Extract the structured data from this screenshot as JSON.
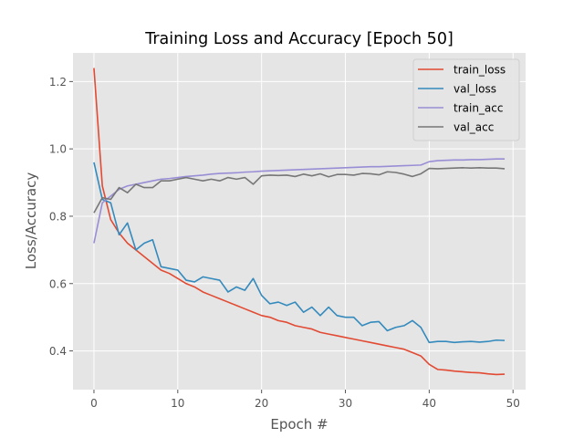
{
  "chart_data": {
    "type": "line",
    "title": "Training Loss and Accuracy [Epoch 50]",
    "xlabel": "Epoch #",
    "ylabel": "Loss/Accuracy",
    "xlim": [
      -2.5,
      51.5
    ],
    "ylim": [
      0.285,
      1.285
    ],
    "xticks": [
      0,
      10,
      20,
      30,
      40,
      50
    ],
    "yticks": [
      0.4,
      0.6,
      0.8,
      1.0,
      1.2
    ],
    "grid": true,
    "legend_position": "top-right",
    "x": [
      0,
      1,
      2,
      3,
      4,
      5,
      6,
      7,
      8,
      9,
      10,
      11,
      12,
      13,
      14,
      15,
      16,
      17,
      18,
      19,
      20,
      21,
      22,
      23,
      24,
      25,
      26,
      27,
      28,
      29,
      30,
      31,
      32,
      33,
      34,
      35,
      36,
      37,
      38,
      39,
      40,
      41,
      42,
      43,
      44,
      45,
      46,
      47,
      48,
      49
    ],
    "series": [
      {
        "name": "train_loss",
        "color": "#e24a33",
        "values": [
          1.24,
          0.89,
          0.79,
          0.75,
          0.72,
          0.7,
          0.68,
          0.66,
          0.64,
          0.63,
          0.615,
          0.6,
          0.59,
          0.575,
          0.565,
          0.555,
          0.545,
          0.535,
          0.525,
          0.515,
          0.505,
          0.5,
          0.49,
          0.485,
          0.475,
          0.47,
          0.465,
          0.455,
          0.45,
          0.445,
          0.44,
          0.435,
          0.43,
          0.425,
          0.42,
          0.415,
          0.41,
          0.405,
          0.395,
          0.385,
          0.36,
          0.345,
          0.343,
          0.34,
          0.338,
          0.336,
          0.335,
          0.332,
          0.33,
          0.331
        ]
      },
      {
        "name": "val_loss",
        "color": "#348abd",
        "values": [
          0.96,
          0.85,
          0.84,
          0.745,
          0.78,
          0.7,
          0.72,
          0.73,
          0.65,
          0.645,
          0.64,
          0.61,
          0.605,
          0.62,
          0.615,
          0.61,
          0.575,
          0.59,
          0.58,
          0.615,
          0.565,
          0.54,
          0.545,
          0.535,
          0.545,
          0.515,
          0.53,
          0.505,
          0.53,
          0.505,
          0.5,
          0.5,
          0.475,
          0.485,
          0.487,
          0.46,
          0.47,
          0.475,
          0.49,
          0.47,
          0.425,
          0.428,
          0.428,
          0.425,
          0.427,
          0.428,
          0.426,
          0.428,
          0.432,
          0.431
        ]
      },
      {
        "name": "train_acc",
        "color": "#988ed5",
        "values": [
          0.72,
          0.84,
          0.86,
          0.88,
          0.89,
          0.895,
          0.9,
          0.905,
          0.91,
          0.912,
          0.915,
          0.918,
          0.92,
          0.922,
          0.925,
          0.927,
          0.928,
          0.929,
          0.931,
          0.932,
          0.934,
          0.935,
          0.936,
          0.937,
          0.938,
          0.939,
          0.94,
          0.941,
          0.942,
          0.943,
          0.944,
          0.945,
          0.946,
          0.947,
          0.947,
          0.948,
          0.949,
          0.95,
          0.951,
          0.952,
          0.962,
          0.965,
          0.966,
          0.967,
          0.967,
          0.968,
          0.968,
          0.969,
          0.97,
          0.97
        ]
      },
      {
        "name": "val_acc",
        "color": "#777777",
        "values": [
          0.81,
          0.855,
          0.85,
          0.885,
          0.87,
          0.895,
          0.885,
          0.885,
          0.905,
          0.905,
          0.91,
          0.915,
          0.91,
          0.905,
          0.91,
          0.905,
          0.915,
          0.91,
          0.915,
          0.895,
          0.92,
          0.922,
          0.921,
          0.922,
          0.918,
          0.925,
          0.92,
          0.926,
          0.917,
          0.924,
          0.924,
          0.922,
          0.927,
          0.926,
          0.923,
          0.932,
          0.93,
          0.925,
          0.918,
          0.926,
          0.942,
          0.941,
          0.942,
          0.943,
          0.944,
          0.943,
          0.944,
          0.943,
          0.943,
          0.941
        ]
      }
    ]
  }
}
